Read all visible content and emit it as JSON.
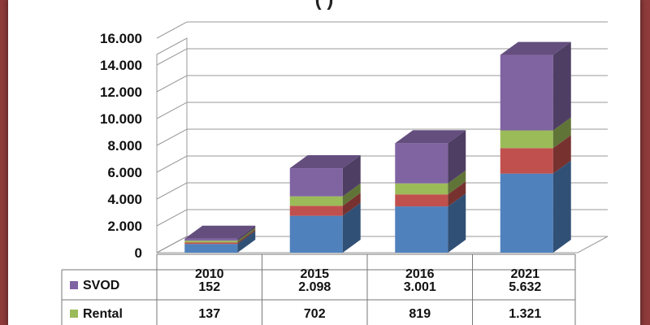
{
  "chart_data": {
    "type": "bar",
    "stacked": true,
    "style": "3d",
    "title": "(        )",
    "categories": [
      "2010",
      "2015",
      "2016",
      "2021"
    ],
    "ylim": [
      0,
      16000
    ],
    "yticks": [
      {
        "value": 0,
        "label": "0"
      },
      {
        "value": 2000,
        "label": "2.000"
      },
      {
        "value": 4000,
        "label": "4.000"
      },
      {
        "value": 6000,
        "label": "6.000"
      },
      {
        "value": 8000,
        "label": "8.000"
      },
      {
        "value": 10000,
        "label": "10.000"
      },
      {
        "value": 12000,
        "label": "12.000"
      },
      {
        "value": 14000,
        "label": "14.000"
      },
      {
        "value": 16000,
        "label": "16.000"
      }
    ],
    "grid": true,
    "series": [
      {
        "name": "",
        "color": "#4f81bd",
        "values": [
          650,
          2750,
          3450,
          5900
        ]
      },
      {
        "name": "",
        "color": "#c0504d",
        "values": [
          110,
          750,
          900,
          1900
        ]
      },
      {
        "name": "Rental",
        "color": "#9bbb59",
        "values": [
          137,
          702,
          819,
          1321
        ],
        "labels": [
          "137",
          "702",
          "819",
          "1.321"
        ]
      },
      {
        "name": "SVOD",
        "color": "#8064a2",
        "values": [
          152,
          2098,
          3001,
          5632
        ],
        "labels": [
          "152",
          "2.098",
          "3.001",
          "5.632"
        ]
      }
    ]
  }
}
